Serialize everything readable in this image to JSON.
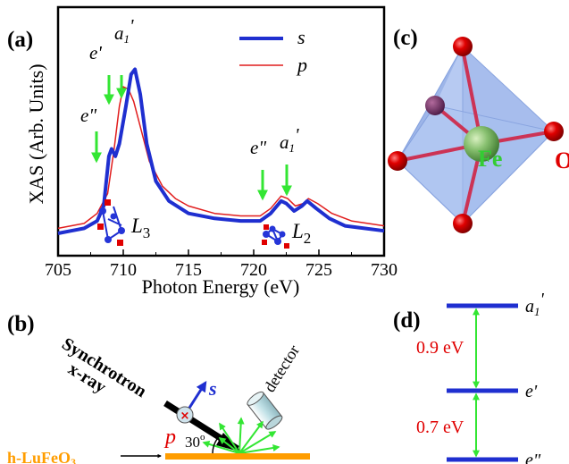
{
  "panel_a": {
    "label": "(a)",
    "ylabel": "XAS (Arb. Units)",
    "xlabel": "Photon Energy (eV)",
    "legend": [
      {
        "name": "s",
        "color": "#1f2fd0"
      },
      {
        "name": "p",
        "color": "#e11d1d"
      }
    ],
    "annotations": {
      "e_double_left": "e\"",
      "e_prime": "e'",
      "a1_left_main": "a",
      "a1_left_sub": "1",
      "a1_left_prime": "'",
      "L3_main": "L",
      "L3_sub": "3",
      "e_double_right": "e\"",
      "a1_right_main": "a",
      "a1_right_sub": "1",
      "a1_right_prime": "'",
      "L2_main": "L",
      "L2_sub": "2"
    }
  },
  "panel_b": {
    "label": "(b)",
    "source_line1": "Synchrotron",
    "source_line2": "x-ray",
    "pol_s": "s",
    "pol_p": "p",
    "angle": "30",
    "angle_unit": "o",
    "detector": "detector",
    "sample": "h-LuFeO",
    "sample_sub": "3"
  },
  "panel_c": {
    "label": "(c)",
    "fe": "Fe",
    "o": "O"
  },
  "panel_d": {
    "label": "(d)",
    "levels": [
      {
        "main": "a",
        "sub": "1",
        "prime": "'"
      },
      {
        "main": "e'",
        "sub": "",
        "prime": ""
      },
      {
        "main": "e\"",
        "sub": "",
        "prime": ""
      }
    ],
    "gap_upper": "0.9 eV",
    "gap_lower": "0.7 eV"
  },
  "chart_data": {
    "type": "line",
    "xlim": [
      705,
      730
    ],
    "ylim": [
      0,
      1
    ],
    "xticks": [
      705,
      710,
      715,
      720,
      725,
      730
    ],
    "xlabel": "Photon Energy (eV)",
    "ylabel": "XAS (Arb. Units)",
    "legend_position": "top-right",
    "series": [
      {
        "name": "s",
        "color": "#1f2fd0",
        "points": [
          [
            705,
            0.09
          ],
          [
            706,
            0.1
          ],
          [
            707,
            0.11
          ],
          [
            708,
            0.14
          ],
          [
            708.5,
            0.2
          ],
          [
            708.9,
            0.4
          ],
          [
            709.1,
            0.43
          ],
          [
            709.4,
            0.4
          ],
          [
            709.7,
            0.45
          ],
          [
            710.2,
            0.6
          ],
          [
            710.6,
            0.73
          ],
          [
            710.9,
            0.75
          ],
          [
            711.3,
            0.65
          ],
          [
            711.8,
            0.45
          ],
          [
            712.5,
            0.3
          ],
          [
            713.5,
            0.22
          ],
          [
            715,
            0.17
          ],
          [
            717,
            0.15
          ],
          [
            719,
            0.14
          ],
          [
            720.5,
            0.14
          ],
          [
            721.3,
            0.17
          ],
          [
            722.1,
            0.22
          ],
          [
            722.5,
            0.21
          ],
          [
            723.1,
            0.18
          ],
          [
            723.7,
            0.2
          ],
          [
            724.1,
            0.22
          ],
          [
            724.8,
            0.19
          ],
          [
            725.8,
            0.15
          ],
          [
            727,
            0.12
          ],
          [
            730,
            0.1
          ]
        ]
      },
      {
        "name": "p",
        "color": "#e11d1d",
        "points": [
          [
            705,
            0.11
          ],
          [
            706,
            0.12
          ],
          [
            707,
            0.13
          ],
          [
            708,
            0.17
          ],
          [
            708.8,
            0.25
          ],
          [
            709.3,
            0.43
          ],
          [
            709.7,
            0.6
          ],
          [
            710.0,
            0.68
          ],
          [
            710.4,
            0.67
          ],
          [
            710.8,
            0.62
          ],
          [
            711.3,
            0.52
          ],
          [
            712,
            0.38
          ],
          [
            713,
            0.28
          ],
          [
            714,
            0.23
          ],
          [
            715,
            0.2
          ],
          [
            717,
            0.17
          ],
          [
            719,
            0.16
          ],
          [
            720.5,
            0.16
          ],
          [
            721.3,
            0.19
          ],
          [
            722.1,
            0.24
          ],
          [
            722.6,
            0.23
          ],
          [
            723.2,
            0.2
          ],
          [
            723.8,
            0.21
          ],
          [
            724.2,
            0.23
          ],
          [
            724.9,
            0.21
          ],
          [
            726,
            0.17
          ],
          [
            727.5,
            0.14
          ],
          [
            730,
            0.12
          ]
        ]
      }
    ]
  }
}
